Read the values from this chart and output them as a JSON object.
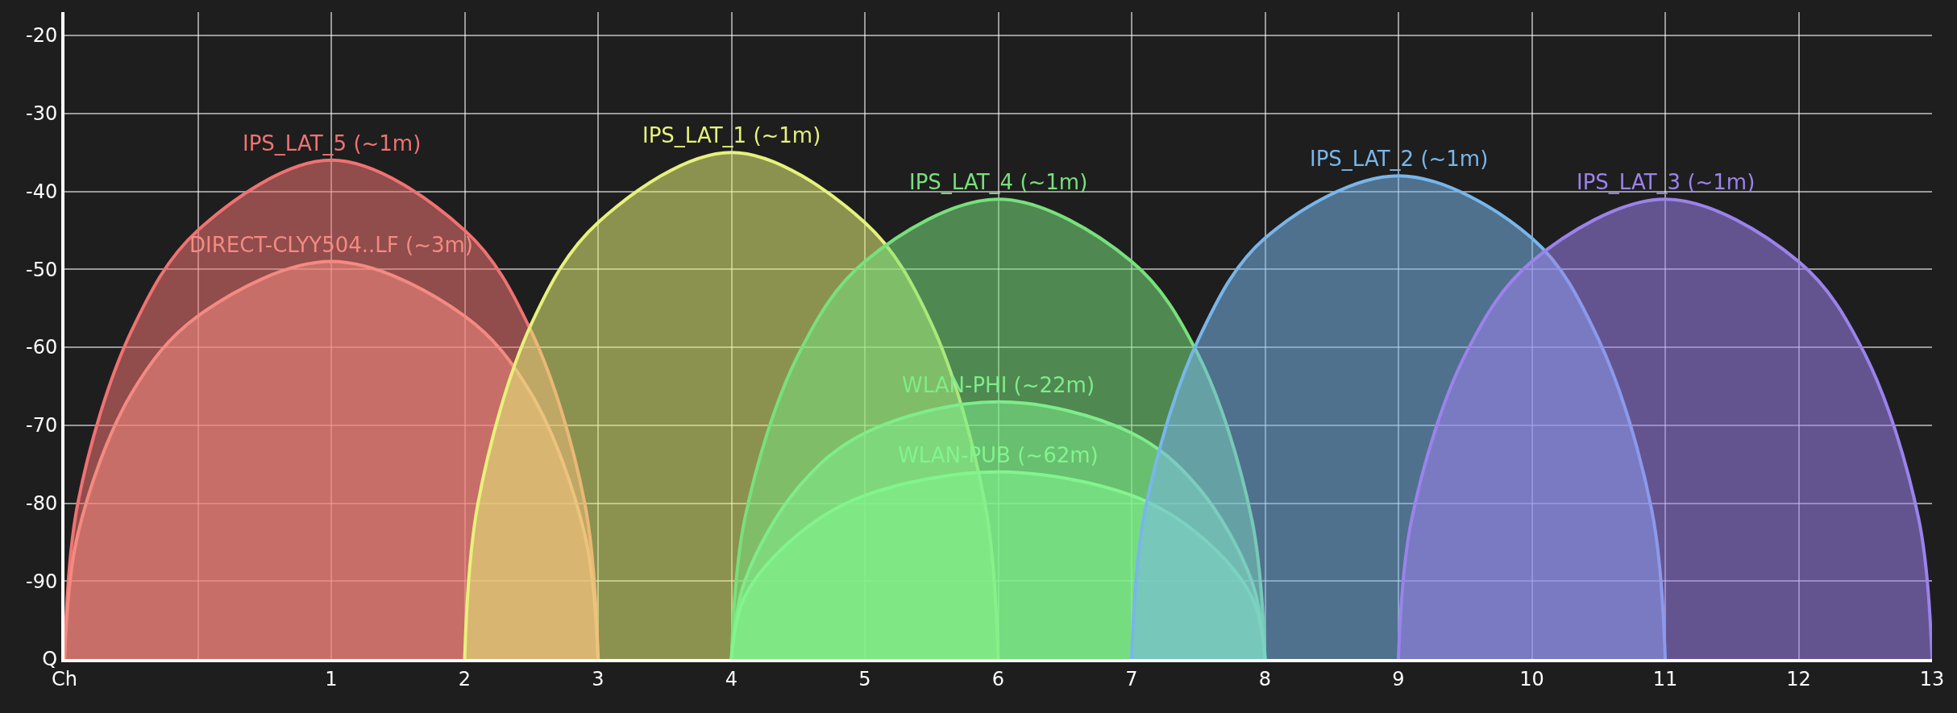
{
  "chart_data": {
    "type": "area",
    "xlim": [
      -1,
      13
    ],
    "ylim": [
      -100,
      -17
    ],
    "xticks": [
      {
        "value": -1,
        "label": "Ch"
      },
      {
        "value": 0,
        "label": null
      },
      1,
      2,
      3,
      4,
      5,
      6,
      7,
      8,
      9,
      10,
      11,
      12,
      13
    ],
    "yticks": [
      {
        "value": -100,
        "label": "Q"
      },
      -90,
      -80,
      -70,
      -60,
      -50,
      -40,
      -30,
      -20
    ],
    "grid": true,
    "series": [
      {
        "name": "IPS_LAT_5 (~1m)",
        "color": "#f07272",
        "x": [
          -1,
          -0.9,
          -0.5,
          0,
          1,
          2,
          2.5,
          2.9,
          3
        ],
        "values": [
          -100,
          -80,
          -58,
          -45,
          -36,
          -45,
          -58,
          -80,
          -100
        ]
      },
      {
        "name": "DIRECT-CLYY504..LF (~3m)",
        "color": "#f48a80",
        "x": [
          -1,
          -0.9,
          -0.5,
          0,
          1,
          2,
          2.5,
          2.9,
          3
        ],
        "values": [
          -100,
          -84,
          -66,
          -56,
          -49,
          -56,
          -66,
          -84,
          -100
        ]
      },
      {
        "name": "IPS_LAT_1 (~1m)",
        "color": "#e6f27a",
        "x": [
          2,
          2.1,
          2.5,
          3,
          4,
          5,
          5.5,
          5.9,
          6
        ],
        "values": [
          -100,
          -80,
          -57,
          -44,
          -35,
          -44,
          -57,
          -80,
          -100
        ]
      },
      {
        "name": "IPS_LAT_4 (~1m)",
        "color": "#78e07c",
        "x": [
          4,
          4.1,
          4.5,
          5,
          6,
          7,
          7.5,
          7.9,
          8
        ],
        "values": [
          -100,
          -82,
          -61,
          -49,
          -41,
          -49,
          -61,
          -82,
          -100
        ]
      },
      {
        "name": "WLAN-PHI (~22m)",
        "color": "#7eec8a",
        "x": [
          4,
          4.1,
          4.5,
          5,
          6,
          7,
          7.5,
          7.9,
          8
        ],
        "values": [
          -100,
          -90,
          -78,
          -71,
          -67,
          -71,
          -78,
          -90,
          -100
        ]
      },
      {
        "name": "WLAN-PUB (~62m)",
        "color": "#82f48e",
        "x": [
          4,
          4.1,
          4.5,
          5,
          6,
          7,
          7.5,
          7.9,
          8
        ],
        "values": [
          -100,
          -92,
          -84,
          -79,
          -76,
          -79,
          -84,
          -92,
          -100
        ]
      },
      {
        "name": "IPS_LAT_2 (~1m)",
        "color": "#78b6ea",
        "x": [
          7,
          7.1,
          7.5,
          8,
          9,
          10,
          10.5,
          10.9,
          11
        ],
        "values": [
          -100,
          -81,
          -59,
          -46,
          -38,
          -46,
          -59,
          -81,
          -100
        ]
      },
      {
        "name": "IPS_LAT_3 (~1m)",
        "color": "#9c82ec",
        "x": [
          9,
          9.1,
          9.5,
          10,
          11,
          12,
          12.5,
          12.9,
          13
        ],
        "values": [
          -100,
          -82,
          -61,
          -49,
          -41,
          -49,
          -61,
          -82,
          -100
        ]
      }
    ]
  }
}
